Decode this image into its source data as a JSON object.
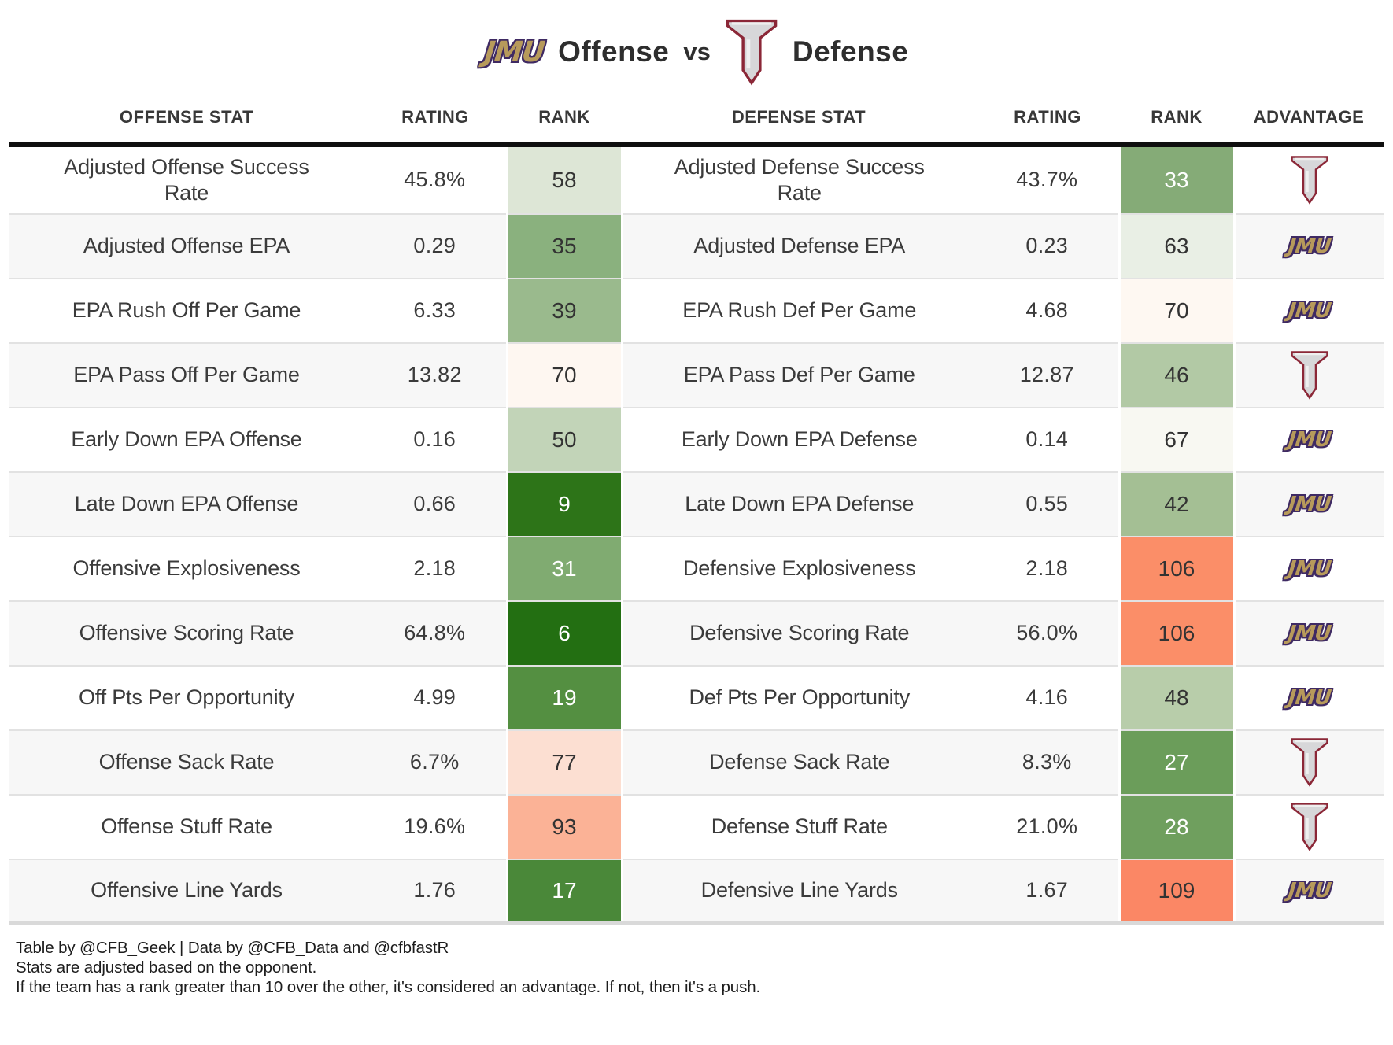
{
  "title": {
    "left_team_logo": "JMU",
    "left_label": "Offense",
    "vs_label": "vs",
    "right_team_logo": "troy-t",
    "right_label": "Defense"
  },
  "logos": {
    "jmu_text": "JMU"
  },
  "colors": {
    "troy_maroon": "#8b2737",
    "troy_silver": "#d7d7d9",
    "jmu_gold": "#b79a5b",
    "jmu_purple": "#3f2a63",
    "header_rule": "#0f0f0f",
    "bottom_rule": "#d9d9d9",
    "row_stripe": "#f7f7f7",
    "row_separator": "#e2e2e2",
    "text": "#3b3b3b"
  },
  "chart_data": {
    "type": "table",
    "title": "JMU Offense vs Troy Defense",
    "columns": [
      "OFFENSE STAT",
      "RATING",
      "RANK",
      "DEFENSE STAT",
      "RATING",
      "RANK",
      "ADVANTAGE"
    ],
    "rows": [
      {
        "offense_stat": "Adjusted Offense Success Rate",
        "offense_rating": "45.8%",
        "offense_rank": "58",
        "offense_rank_bg": "#dde6d6",
        "offense_rank_fg": "#333333",
        "defense_stat": "Adjusted Defense Success Rate",
        "defense_rating": "43.7%",
        "defense_rank": "33",
        "defense_rank_bg": "#85ab77",
        "defense_rank_fg": "#ffffff",
        "advantage": "troy"
      },
      {
        "offense_stat": "Adjusted Offense EPA",
        "offense_rating": "0.29",
        "offense_rank": "35",
        "offense_rank_bg": "#8ab17e",
        "offense_rank_fg": "#333333",
        "defense_stat": "Adjusted Defense EPA",
        "defense_rating": "0.23",
        "defense_rank": "63",
        "defense_rank_bg": "#e9efe5",
        "defense_rank_fg": "#333333",
        "advantage": "jmu"
      },
      {
        "offense_stat": "EPA Rush Off Per Game",
        "offense_rating": "6.33",
        "offense_rank": "39",
        "offense_rank_bg": "#9aba8d",
        "offense_rank_fg": "#333333",
        "defense_stat": "EPA Rush Def Per Game",
        "defense_rating": "4.68",
        "defense_rank": "70",
        "defense_rank_bg": "#fef8f2",
        "defense_rank_fg": "#333333",
        "advantage": "jmu"
      },
      {
        "offense_stat": "EPA Pass Off Per Game",
        "offense_rating": "13.82",
        "offense_rank": "70",
        "offense_rank_bg": "#fef7f1",
        "offense_rank_fg": "#333333",
        "defense_stat": "EPA Pass Def Per Game",
        "defense_rating": "12.87",
        "defense_rank": "46",
        "defense_rank_bg": "#b2c9a5",
        "defense_rank_fg": "#333333",
        "advantage": "troy"
      },
      {
        "offense_stat": "Early Down EPA Offense",
        "offense_rating": "0.16",
        "offense_rank": "50",
        "offense_rank_bg": "#c2d4b8",
        "offense_rank_fg": "#333333",
        "defense_stat": "Early Down EPA Defense",
        "defense_rating": "0.14",
        "defense_rank": "67",
        "defense_rank_bg": "#f8f8f2",
        "defense_rank_fg": "#333333",
        "advantage": "jmu"
      },
      {
        "offense_stat": "Late Down EPA Offense",
        "offense_rating": "0.66",
        "offense_rank": "9",
        "offense_rank_bg": "#2d7418",
        "offense_rank_fg": "#ffffff",
        "defense_stat": "Late Down EPA Defense",
        "defense_rating": "0.55",
        "defense_rank": "42",
        "defense_rank_bg": "#a4bf94",
        "defense_rank_fg": "#333333",
        "advantage": "jmu"
      },
      {
        "offense_stat": "Offensive Explosiveness",
        "offense_rating": "2.18",
        "offense_rank": "31",
        "offense_rank_bg": "#80ab71",
        "offense_rank_fg": "#ffffff",
        "defense_stat": "Defensive Explosiveness",
        "defense_rating": "2.18",
        "defense_rank": "106",
        "defense_rank_bg": "#fb8e68",
        "defense_rank_fg": "#333333",
        "advantage": "jmu"
      },
      {
        "offense_stat": "Offensive Scoring Rate",
        "offense_rating": "64.8%",
        "offense_rank": "6",
        "offense_rank_bg": "#236f12",
        "offense_rank_fg": "#ffffff",
        "defense_stat": "Defensive Scoring Rate",
        "defense_rating": "56.0%",
        "defense_rank": "106",
        "defense_rank_bg": "#fb8e68",
        "defense_rank_fg": "#333333",
        "advantage": "jmu"
      },
      {
        "offense_stat": "Off Pts Per Opportunity",
        "offense_rating": "4.99",
        "offense_rank": "19",
        "offense_rank_bg": "#548f41",
        "offense_rank_fg": "#ffffff",
        "defense_stat": "Def Pts Per Opportunity",
        "defense_rating": "4.16",
        "defense_rank": "48",
        "defense_rank_bg": "#b8cdaa",
        "defense_rank_fg": "#333333",
        "advantage": "jmu"
      },
      {
        "offense_stat": "Offense Sack Rate",
        "offense_rating": "6.7%",
        "offense_rank": "77",
        "offense_rank_bg": "#fcdfd2",
        "offense_rank_fg": "#333333",
        "defense_stat": "Defense Sack Rate",
        "defense_rating": "8.3%",
        "defense_rank": "27",
        "defense_rank_bg": "#6b9d5a",
        "defense_rank_fg": "#ffffff",
        "advantage": "troy"
      },
      {
        "offense_stat": "Offense Stuff Rate",
        "offense_rating": "19.6%",
        "offense_rank": "93",
        "offense_rank_bg": "#fbb296",
        "offense_rank_fg": "#333333",
        "defense_stat": "Defense Stuff Rate",
        "defense_rating": "21.0%",
        "defense_rank": "28",
        "defense_rank_bg": "#6f9f5e",
        "defense_rank_fg": "#ffffff",
        "advantage": "troy"
      },
      {
        "offense_stat": "Offensive Line Yards",
        "offense_rating": "1.76",
        "offense_rank": "17",
        "offense_rank_bg": "#4a8839",
        "offense_rank_fg": "#ffffff",
        "defense_stat": "Defensive Line Yards",
        "defense_rating": "1.67",
        "defense_rank": "109",
        "defense_rank_bg": "#fb8765",
        "defense_rank_fg": "#333333",
        "advantage": "jmu"
      }
    ]
  },
  "footer": {
    "lines": [
      "Table by @CFB_Geek | Data by @CFB_Data and @cfbfastR",
      "Stats are adjusted based on the opponent.",
      "If the team has a rank greater than 10 over the other, it's considered an advantage. If not, then it's a push."
    ]
  }
}
